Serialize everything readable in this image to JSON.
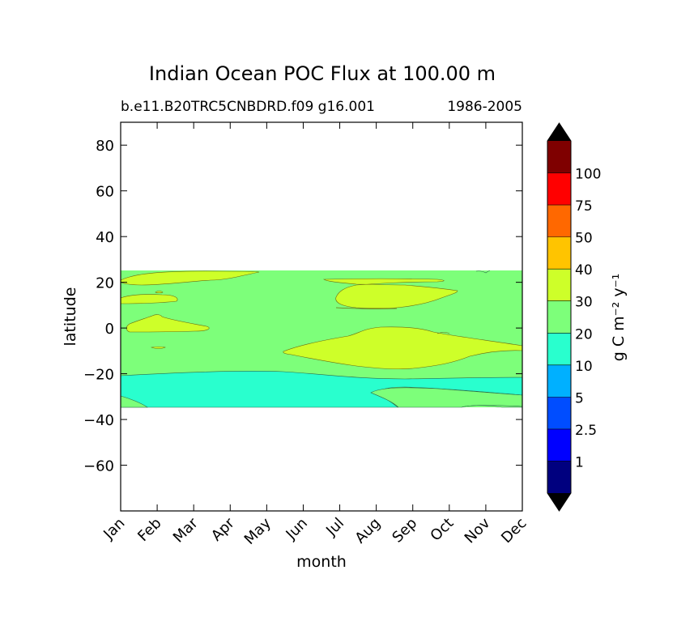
{
  "chart_data": {
    "type": "heatmap",
    "title": "Indian Ocean POC Flux at 100.00 m",
    "subtitle_left": "b.e11.B20TRC5CNBDRD.f09 g16.001",
    "subtitle_right": "1986-2005",
    "xlabel": "month",
    "ylabel": "latitude",
    "x_ticks": [
      "Jan",
      "Feb",
      "Mar",
      "Apr",
      "May",
      "Jun",
      "Jul",
      "Aug",
      "Sep",
      "Oct",
      "Nov",
      "Dec"
    ],
    "y_ticks": [
      80,
      60,
      40,
      20,
      0,
      -20,
      -40,
      -60
    ],
    "ylim": [
      -80,
      90
    ],
    "data_lat_range": [
      -34,
      26
    ],
    "colorbar": {
      "label": "g C m⁻² y⁻¹",
      "levels": [
        "1",
        "2.5",
        "5",
        "10",
        "20",
        "30",
        "40",
        "50",
        "75",
        "100"
      ],
      "colors": [
        "#00007f",
        "#0000ff",
        "#004dff",
        "#00b0ff",
        "#29ffce",
        "#7dff7a",
        "#ceff29",
        "#ffc400",
        "#ff6800",
        "#ff0000",
        "#7f0000"
      ],
      "extend_colors": {
        "under": "#000000",
        "over": "#000000"
      }
    },
    "regions": [
      {
        "level_range": "10-20",
        "description": "southern band",
        "lat_range": [
          -34,
          -20
        ]
      },
      {
        "level_range": "20-30",
        "description": "background",
        "lat_range": [
          -20,
          26
        ]
      },
      {
        "level_range": "30-40",
        "description": "patches",
        "locations": [
          "Jan-May 20N",
          "Jan-Feb 12N",
          "Jan-Mar 0N",
          "Jun-Nov 15N",
          "Jul-Dec -5N"
        ]
      }
    ]
  }
}
